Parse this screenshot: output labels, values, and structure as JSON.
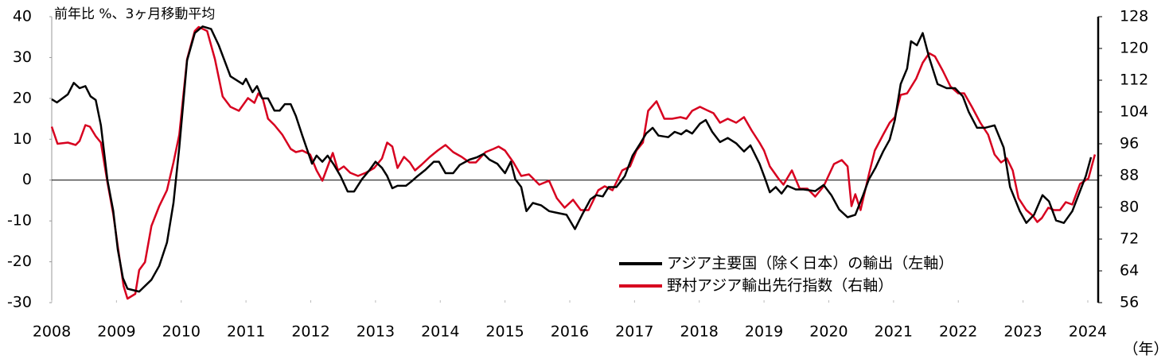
{
  "chart_data": {
    "type": "line",
    "title": "前年比 %、3ヶ月移動平均",
    "x_unit_label": "（年）",
    "xlim": [
      2008,
      2024.16
    ],
    "xticks": [
      2008,
      2009,
      2010,
      2011,
      2012,
      2013,
      2014,
      2015,
      2016,
      2017,
      2018,
      2019,
      2020,
      2021,
      2022,
      2023,
      2024
    ],
    "ylim": [
      -30,
      40
    ],
    "yticks": [
      -30,
      -20,
      -10,
      0,
      10,
      20,
      30,
      40
    ],
    "y2lim": [
      56,
      128
    ],
    "y2ticks": [
      56,
      64,
      72,
      80,
      88,
      96,
      104,
      112,
      120,
      128
    ],
    "zero_line": true,
    "legend": "lower right",
    "series": [
      {
        "name": "アジア主要国（除く日本）の輸出（左軸）",
        "color": "#000000",
        "axis": "y",
        "x": [
          2008.0,
          2008.08,
          2008.25,
          2008.34,
          2008.43,
          2008.52,
          2008.6,
          2008.68,
          2008.76,
          2008.86,
          2008.95,
          2009.02,
          2009.1,
          2009.17,
          2009.35,
          2009.54,
          2009.66,
          2009.78,
          2009.88,
          2009.97,
          2010.09,
          2010.21,
          2010.33,
          2010.46,
          2010.58,
          2010.76,
          2010.95,
          2011.0,
          2011.1,
          2011.17,
          2011.25,
          2011.34,
          2011.44,
          2011.52,
          2011.6,
          2011.69,
          2011.77,
          2011.87,
          2012.02,
          2012.09,
          2012.18,
          2012.26,
          2012.36,
          2012.46,
          2012.57,
          2012.67,
          2012.79,
          2012.91,
          2013.0,
          2013.1,
          2013.18,
          2013.26,
          2013.34,
          2013.47,
          2013.55,
          2013.65,
          2013.77,
          2013.9,
          2013.98,
          2014.08,
          2014.2,
          2014.3,
          2014.45,
          2014.57,
          2014.67,
          2014.76,
          2014.88,
          2015.0,
          2015.09,
          2015.16,
          2015.25,
          2015.33,
          2015.43,
          2015.56,
          2015.68,
          2015.8,
          2015.95,
          2016.08,
          2016.19,
          2016.32,
          2016.41,
          2016.51,
          2016.6,
          2016.72,
          2016.85,
          2016.97,
          2017.09,
          2017.18,
          2017.28,
          2017.37,
          2017.52,
          2017.62,
          2017.72,
          2017.8,
          2017.89,
          2018.01,
          2018.1,
          2018.2,
          2018.32,
          2018.44,
          2018.57,
          2018.69,
          2018.79,
          2018.93,
          2019.02,
          2019.09,
          2019.18,
          2019.27,
          2019.36,
          2019.49,
          2019.61,
          2019.79,
          2019.92,
          2020.04,
          2020.16,
          2020.29,
          2020.41,
          2020.53,
          2020.62,
          2020.72,
          2020.84,
          2020.94,
          2021.02,
          2021.11,
          2021.21,
          2021.27,
          2021.36,
          2021.45,
          2021.55,
          2021.68,
          2021.82,
          2021.95,
          2022.07,
          2022.16,
          2022.29,
          2022.41,
          2022.56,
          2022.7,
          2022.8,
          2022.95,
          2023.05,
          2023.17,
          2023.3,
          2023.4,
          2023.51,
          2023.63,
          2023.76,
          2023.88,
          2023.97,
          2024.05
        ],
        "values": [
          19.8,
          19,
          21,
          23.8,
          22.5,
          23,
          20.5,
          19.6,
          13.4,
          0,
          -7.5,
          -17,
          -24,
          -26.6,
          -27.3,
          -24.4,
          -21,
          -15.3,
          -5.6,
          8,
          29.3,
          36,
          37.6,
          37,
          33,
          25.4,
          23.5,
          24.8,
          21.5,
          23,
          20,
          20,
          17,
          17,
          18.6,
          18.6,
          15.7,
          10.9,
          4,
          6,
          4.5,
          6,
          3.7,
          1,
          -2.8,
          -2.8,
          0.2,
          2.5,
          4.5,
          3,
          1,
          -2,
          -1.4,
          -1.4,
          -0.4,
          1,
          2.5,
          4.5,
          4.5,
          1.7,
          1.7,
          3.7,
          5,
          5.6,
          6.4,
          5,
          4,
          1.7,
          4.5,
          0.2,
          -1.7,
          -7.6,
          -5.6,
          -6.2,
          -7.6,
          -8,
          -8.5,
          -12,
          -8.5,
          -4.7,
          -3.7,
          -4,
          -1.7,
          -1.7,
          1,
          6,
          9,
          11.4,
          12.8,
          10.9,
          10.5,
          11.8,
          11.2,
          12.2,
          11.4,
          13.8,
          14.7,
          11.8,
          9.3,
          10.3,
          9,
          7,
          8.5,
          4,
          0.2,
          -3,
          -1.7,
          -3.3,
          -1.4,
          -2.3,
          -2.3,
          -2.7,
          -1.2,
          -3.7,
          -7.2,
          -9.1,
          -8.5,
          -3.7,
          0.2,
          3,
          7,
          9.9,
          14.7,
          23.5,
          27.3,
          34,
          33,
          36,
          30,
          23.5,
          22.5,
          22.5,
          20.5,
          16.7,
          12.8,
          12.8,
          13.4,
          8,
          -1.7,
          -7.6,
          -10.5,
          -8.5,
          -3.7,
          -5.2,
          -9.9,
          -10.5,
          -7.6,
          -2.7,
          1,
          5.6
        ]
      },
      {
        "name": "野村アジア輸出先行指数（右軸）",
        "color": "#d7001f",
        "axis": "y2",
        "x": [
          2008.0,
          2008.09,
          2008.25,
          2008.37,
          2008.43,
          2008.52,
          2008.59,
          2008.68,
          2008.76,
          2008.86,
          2008.95,
          2009.02,
          2009.11,
          2009.17,
          2009.29,
          2009.35,
          2009.44,
          2009.54,
          2009.66,
          2009.78,
          2009.88,
          2009.97,
          2010.09,
          2010.21,
          2010.27,
          2010.4,
          2010.52,
          2010.64,
          2010.76,
          2010.89,
          2011.03,
          2011.13,
          2011.19,
          2011.26,
          2011.34,
          2011.44,
          2011.56,
          2011.69,
          2011.77,
          2011.87,
          2011.99,
          2012.09,
          2012.18,
          2012.34,
          2012.42,
          2012.51,
          2012.61,
          2012.73,
          2012.85,
          2012.98,
          2013.1,
          2013.18,
          2013.26,
          2013.34,
          2013.44,
          2013.53,
          2013.61,
          2013.71,
          2013.84,
          2013.96,
          2014.08,
          2014.2,
          2014.33,
          2014.45,
          2014.55,
          2014.7,
          2014.82,
          2014.9,
          2015.0,
          2015.13,
          2015.25,
          2015.37,
          2015.53,
          2015.68,
          2015.8,
          2015.92,
          2016.05,
          2016.17,
          2016.29,
          2016.44,
          2016.54,
          2016.66,
          2016.81,
          2016.93,
          2017.03,
          2017.13,
          2017.21,
          2017.34,
          2017.46,
          2017.58,
          2017.71,
          2017.8,
          2017.89,
          2018.01,
          2018.14,
          2018.22,
          2018.32,
          2018.44,
          2018.57,
          2018.69,
          2018.81,
          2018.93,
          2019.0,
          2019.09,
          2019.22,
          2019.3,
          2019.43,
          2019.55,
          2019.67,
          2019.79,
          2019.92,
          2020.08,
          2020.2,
          2020.29,
          2020.35,
          2020.41,
          2020.49,
          2020.62,
          2020.71,
          2020.84,
          2020.94,
          2021.02,
          2021.11,
          2021.21,
          2021.35,
          2021.45,
          2021.55,
          2021.64,
          2021.76,
          2021.88,
          2022.0,
          2022.09,
          2022.21,
          2022.34,
          2022.46,
          2022.56,
          2022.66,
          2022.75,
          2022.84,
          2022.93,
          2023.05,
          2023.15,
          2023.22,
          2023.29,
          2023.39,
          2023.48,
          2023.57,
          2023.66,
          2023.76,
          2023.88,
          2024.01,
          2024.11
        ],
        "values": [
          100.3,
          96,
          96.3,
          95.7,
          96.7,
          100.7,
          100.3,
          97.9,
          96.3,
          86.3,
          78.3,
          70.2,
          60.2,
          57,
          58.2,
          64.2,
          66.2,
          75.3,
          80.3,
          84.3,
          91.3,
          98.3,
          117.3,
          124.4,
          125.4,
          124.4,
          117.3,
          107.9,
          105.3,
          104.3,
          107.5,
          106.3,
          108.7,
          107.3,
          102.3,
          100.7,
          98.3,
          94.7,
          93.9,
          94.3,
          93.3,
          89.3,
          86.7,
          93.7,
          89.3,
          90.3,
          88.7,
          87.9,
          88.7,
          89.9,
          92.3,
          96.3,
          95.3,
          89.9,
          92.7,
          91.3,
          89.3,
          90.7,
          92.7,
          94.3,
          95.7,
          93.9,
          92.7,
          91.3,
          91.3,
          93.9,
          94.7,
          95.3,
          94.3,
          91.3,
          87.9,
          88.3,
          85.7,
          86.7,
          82.3,
          79.9,
          81.9,
          79.3,
          79.3,
          84.3,
          85.3,
          84.3,
          89.3,
          90.3,
          94.3,
          96.3,
          104.3,
          106.7,
          102.3,
          102.3,
          102.7,
          102.3,
          104.3,
          105.3,
          104.3,
          103.7,
          101.3,
          102.3,
          101.3,
          102.7,
          99.3,
          96.3,
          94.3,
          90.3,
          87.3,
          85.7,
          89.3,
          84.7,
          84.7,
          82.7,
          85.3,
          90.9,
          91.9,
          90.3,
          80.3,
          83.3,
          79.3,
          88.3,
          94.3,
          98.3,
          101.3,
          102.7,
          108.3,
          108.7,
          112.4,
          116.4,
          118.8,
          118,
          114.4,
          110.4,
          108.7,
          108.7,
          105.3,
          101.3,
          98.3,
          93.3,
          91.3,
          92.3,
          89.3,
          82.3,
          79.3,
          77.9,
          76.3,
          77.3,
          79.9,
          79.3,
          79.3,
          81.3,
          80.7,
          85.9,
          87.3,
          93.3
        ]
      }
    ]
  }
}
